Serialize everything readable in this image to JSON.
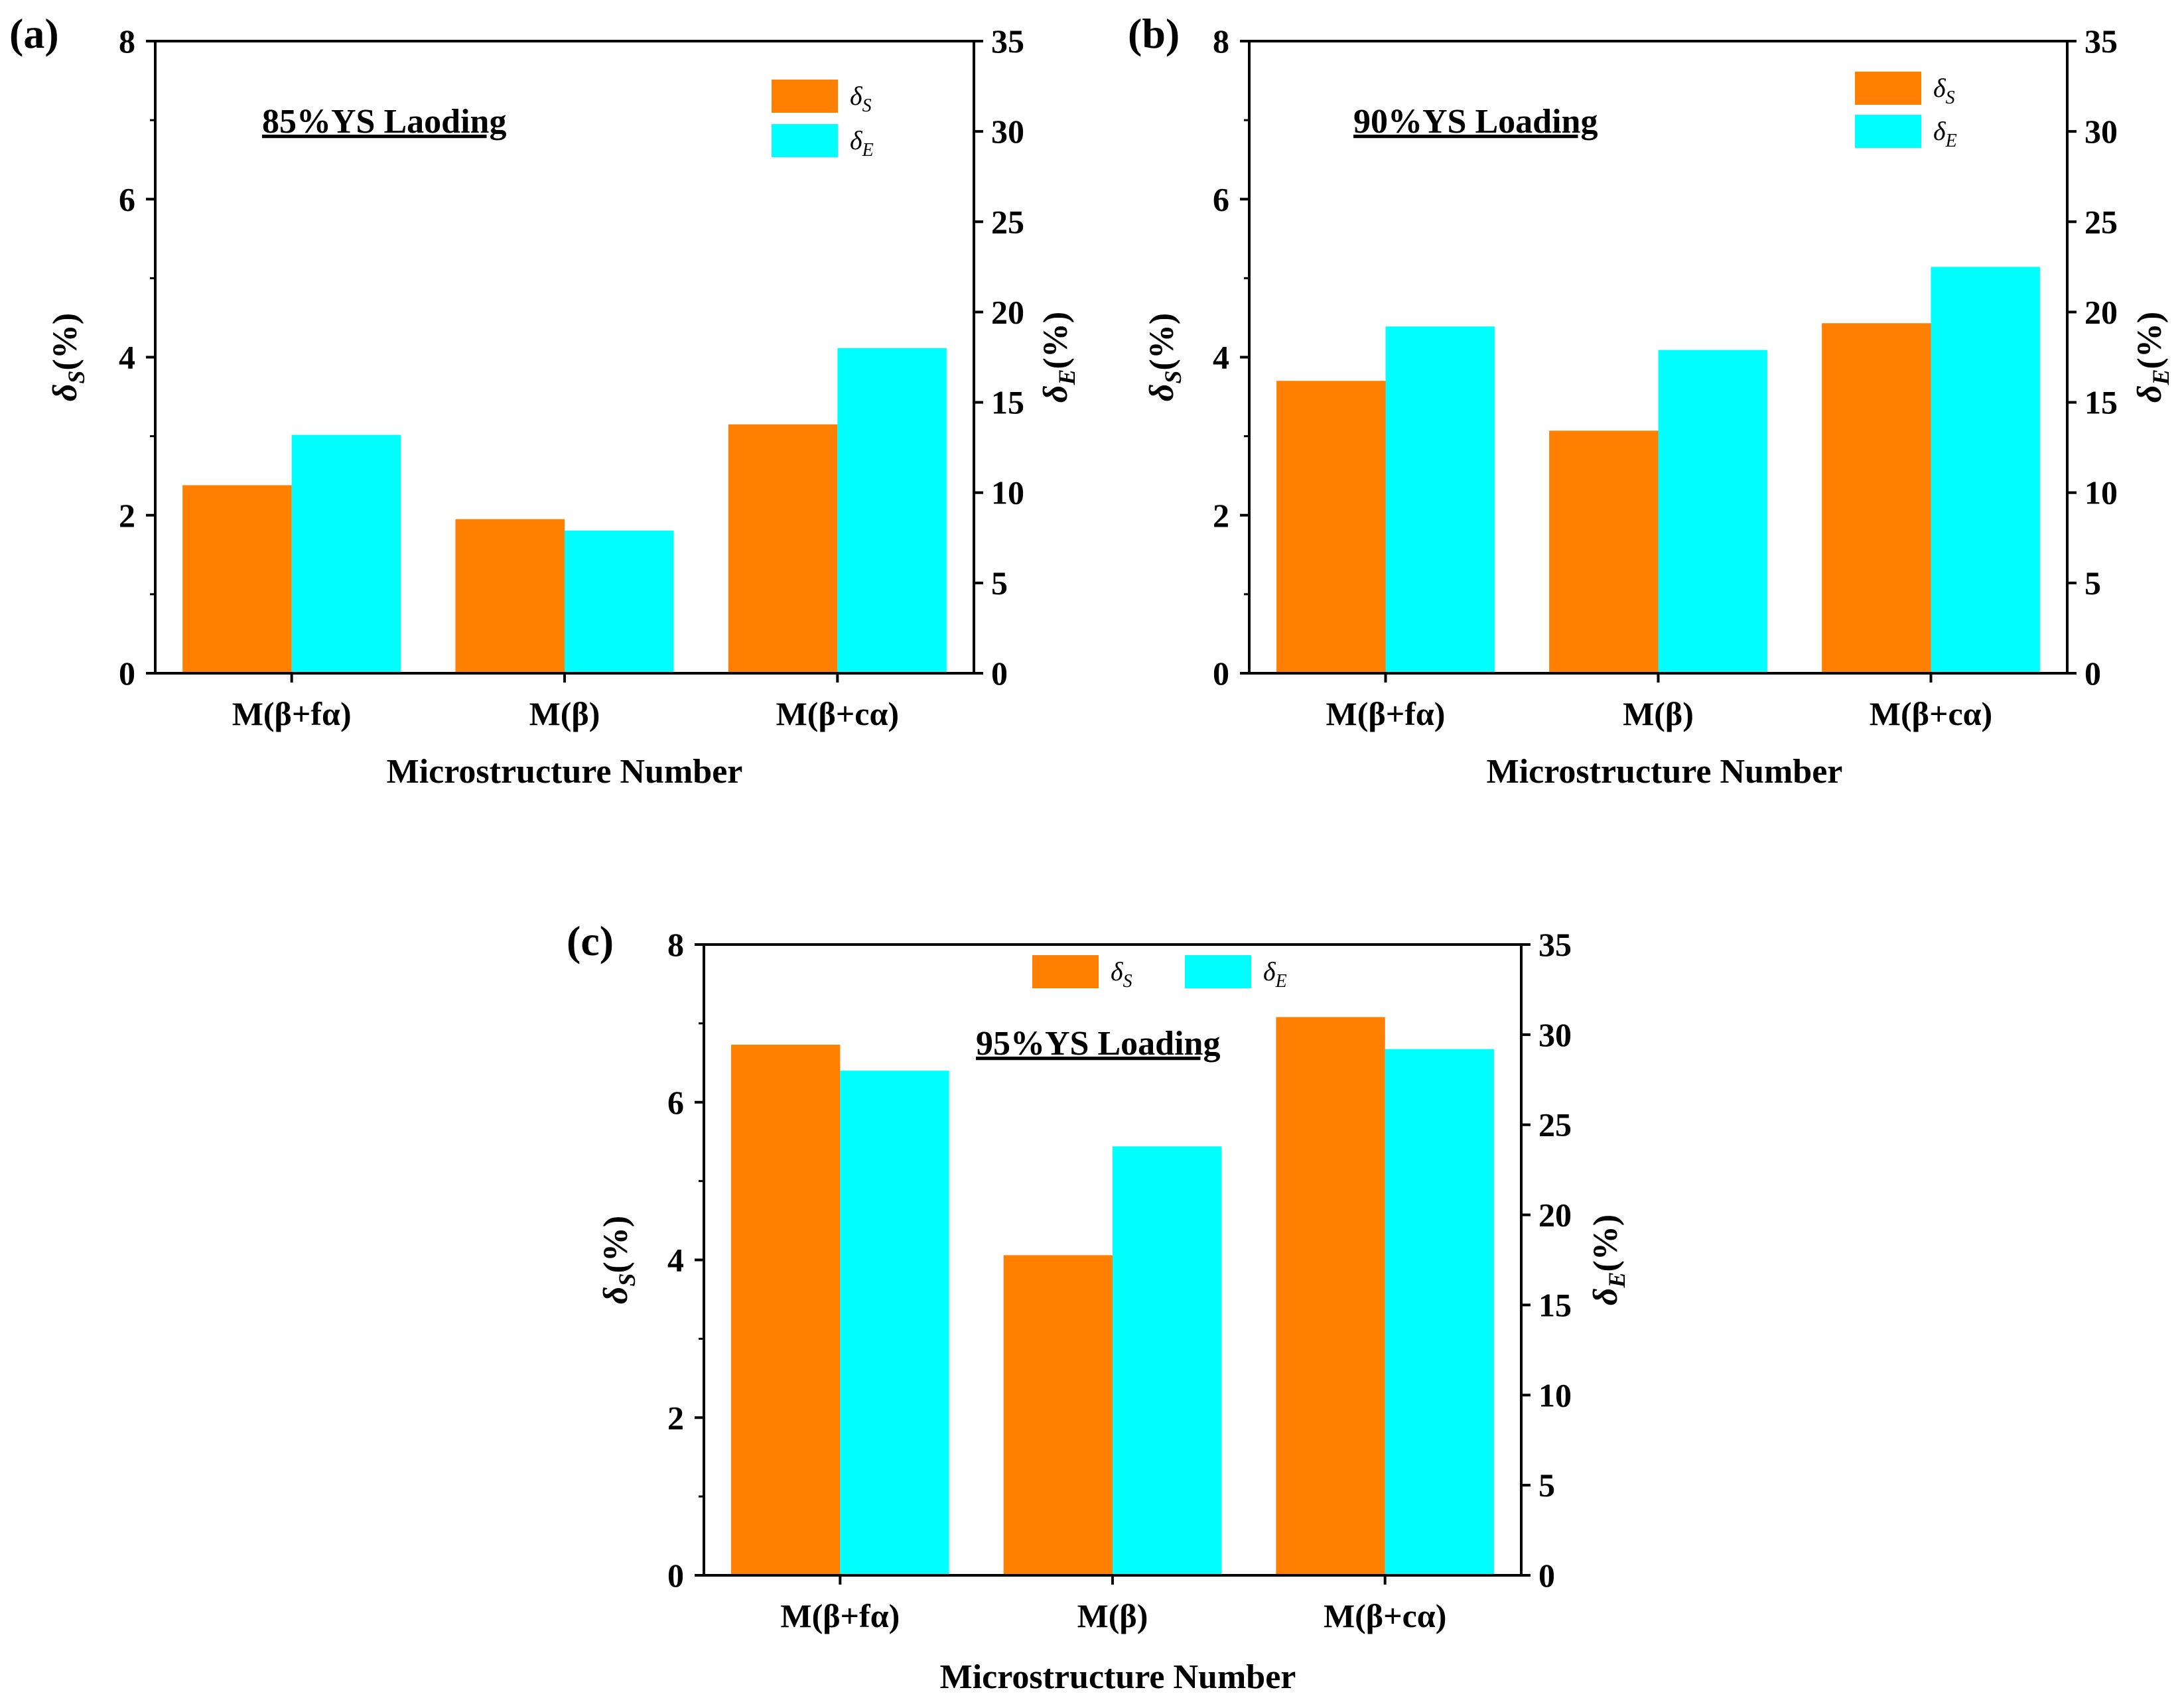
{
  "chart_data": [
    {
      "type": "bar",
      "panel_label": "(a)",
      "annotation": "85%YS Laoding",
      "categories": [
        "M(β+fα)",
        "M(β)",
        "M(β+cα)"
      ],
      "series": [
        {
          "name": "δS",
          "symbol": "δ",
          "subscript": "S",
          "axis": "left",
          "color": "#FF7F00",
          "values": [
            2.38,
            1.95,
            3.15
          ]
        },
        {
          "name": "δE",
          "symbol": "δ",
          "subscript": "E",
          "axis": "right",
          "color": "#00FFFF",
          "values": [
            13.2,
            7.9,
            18.0
          ]
        }
      ],
      "xlabel": "Microstructure Number",
      "ylabel_left": {
        "symbol": "δ",
        "subscript": "S",
        "suffix": "(%)"
      },
      "ylabel_right": {
        "symbol": "δ",
        "subscript": "E",
        "suffix": "(%)"
      },
      "ylim_left": [
        0,
        8
      ],
      "yticks_left": [
        "0",
        "2",
        "4",
        "6",
        "8"
      ],
      "ylim_right": [
        0,
        35
      ],
      "yticks_right": [
        "0",
        "5",
        "10",
        "15",
        "20",
        "25",
        "30",
        "35"
      ],
      "legend": "top-right",
      "grid": false
    },
    {
      "type": "bar",
      "panel_label": "(b)",
      "annotation": "90%YS Loading",
      "categories": [
        "M(β+fα)",
        "M(β)",
        "M(β+cα)"
      ],
      "series": [
        {
          "name": "δS",
          "symbol": "δ",
          "subscript": "S",
          "axis": "left",
          "color": "#FF7F00",
          "values": [
            3.7,
            3.07,
            4.43
          ]
        },
        {
          "name": "δE",
          "symbol": "δ",
          "subscript": "E",
          "axis": "right",
          "color": "#00FFFF",
          "values": [
            19.2,
            17.9,
            22.5
          ]
        }
      ],
      "xlabel": "Microstructure Number",
      "ylabel_left": {
        "symbol": "δ",
        "subscript": "S",
        "suffix": "(%)"
      },
      "ylabel_right": {
        "symbol": "δ",
        "subscript": "E",
        "suffix": "(%)"
      },
      "ylim_left": [
        0,
        8
      ],
      "yticks_left": [
        "0",
        "2",
        "4",
        "6",
        "8"
      ],
      "ylim_right": [
        0,
        35
      ],
      "yticks_right": [
        "0",
        "5",
        "10",
        "15",
        "20",
        "25",
        "30",
        "35"
      ],
      "legend": "top-right",
      "grid": false
    },
    {
      "type": "bar",
      "panel_label": "(c)",
      "annotation": "95%YS Loading",
      "categories": [
        "M(β+fα)",
        "M(β)",
        "M(β+cα)"
      ],
      "series": [
        {
          "name": "δS",
          "symbol": "δ",
          "subscript": "S",
          "axis": "left",
          "color": "#FF7F00",
          "values": [
            6.73,
            4.06,
            7.08
          ]
        },
        {
          "name": "δE",
          "symbol": "δ",
          "subscript": "E",
          "axis": "right",
          "color": "#00FFFF",
          "values": [
            28.0,
            23.8,
            29.2
          ]
        }
      ],
      "xlabel": "Microstructure Number",
      "ylabel_left": {
        "symbol": "δ",
        "subscript": "S",
        "suffix": "(%)"
      },
      "ylabel_right": {
        "symbol": "δ",
        "subscript": "E",
        "suffix": "(%)"
      },
      "ylim_left": [
        0,
        8
      ],
      "yticks_left": [
        "0",
        "2",
        "4",
        "6",
        "8"
      ],
      "ylim_right": [
        0,
        35
      ],
      "yticks_right": [
        "0",
        "5",
        "10",
        "15",
        "20",
        "25",
        "30",
        "35"
      ],
      "legend": "top-center",
      "grid": false
    }
  ]
}
